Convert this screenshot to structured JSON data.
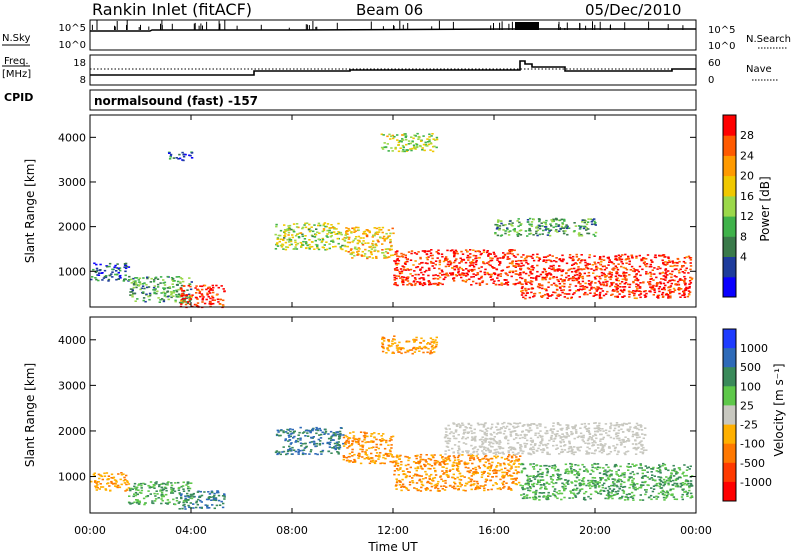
{
  "header": {
    "station": "Rankin Inlet (fitACF)",
    "beam": "Beam 06",
    "date": "05/Dec/2010"
  },
  "noise_panel": {
    "left_label": "N.Sky",
    "right_label": "N.Search",
    "left_ticks": [
      "10^5",
      "10^0"
    ],
    "right_ticks": [
      "10^5",
      "10^0"
    ]
  },
  "freq_panel": {
    "left_label_1": "Freq.",
    "left_label_2": "[MHz]",
    "right_label": "Nave",
    "left_ticks": [
      "18",
      "8"
    ],
    "right_ticks": [
      "60",
      "0"
    ]
  },
  "cpid": {
    "label": "CPID",
    "value": "normalsound (fast) -157"
  },
  "x_axis": {
    "label": "Time UT",
    "ticks": [
      "00:00",
      "04:00",
      "08:00",
      "12:00",
      "16:00",
      "20:00",
      "00:00"
    ]
  },
  "power_colorbar": {
    "label": "Power [dB]",
    "ticks": [
      "28",
      "24",
      "20",
      "16",
      "12",
      "8",
      "4"
    ],
    "colors": [
      "#0a00ff",
      "#1e3c9c",
      "#3a7a4a",
      "#3fb24a",
      "#9bd84a",
      "#f0c800",
      "#ff9a00",
      "#ff5a00",
      "#ff0000"
    ]
  },
  "velocity_colorbar": {
    "label": "Velocity [m s⁻¹]",
    "ticks": [
      "1000",
      "500",
      "100",
      "25",
      "-25",
      "-100",
      "-500",
      "-1000"
    ],
    "colors": [
      "#1e3cff",
      "#2e6ab8",
      "#3a8a5a",
      "#5ec84a",
      "#c8c8c0",
      "#ffb000",
      "#ff7800",
      "#ff3a00",
      "#ff0000"
    ]
  },
  "chart_data": [
    {
      "type": "heatmap",
      "title": "",
      "xlabel": "Time UT",
      "ylabel": "Slant Range [km]",
      "xlim": [
        0,
        24
      ],
      "ylim": [
        200,
        4500
      ],
      "yticks": [
        1000,
        2000,
        3000,
        4000
      ],
      "colorbar_label": "Power [dB]",
      "regions": [
        {
          "t": [
            0.0,
            1.5
          ],
          "r": [
            800,
            1200
          ],
          "value": 8
        },
        {
          "t": [
            1.5,
            4.0
          ],
          "r": [
            300,
            900
          ],
          "value": 12
        },
        {
          "t": [
            3.5,
            5.3
          ],
          "r": [
            200,
            700
          ],
          "value": 28
        },
        {
          "t": [
            7.3,
            10.0
          ],
          "r": [
            1500,
            2100
          ],
          "value": 16
        },
        {
          "t": [
            10.0,
            12.0
          ],
          "r": [
            1300,
            2000
          ],
          "value": 20
        },
        {
          "t": [
            11.5,
            13.7
          ],
          "r": [
            3700,
            4100
          ],
          "value": 16
        },
        {
          "t": [
            12.0,
            17.0
          ],
          "r": [
            700,
            1500
          ],
          "value": 28
        },
        {
          "t": [
            17.0,
            23.8
          ],
          "r": [
            400,
            1400
          ],
          "value": 28
        },
        {
          "t": [
            3.0,
            4.0
          ],
          "r": [
            3500,
            3700
          ],
          "value": 8
        },
        {
          "t": [
            16.0,
            20.0
          ],
          "r": [
            1800,
            2200
          ],
          "value": 12
        }
      ]
    },
    {
      "type": "heatmap",
      "title": "",
      "xlabel": "Time UT",
      "ylabel": "Slant Range [km]",
      "xlim": [
        0,
        24
      ],
      "ylim": [
        200,
        4500
      ],
      "yticks": [
        1000,
        2000,
        3000,
        4000
      ],
      "colorbar_label": "Velocity [m s-1]",
      "regions": [
        {
          "t": [
            0.0,
            1.5
          ],
          "r": [
            700,
            1100
          ],
          "value": -100
        },
        {
          "t": [
            1.5,
            4.0
          ],
          "r": [
            400,
            900
          ],
          "value": 100
        },
        {
          "t": [
            3.5,
            5.3
          ],
          "r": [
            300,
            700
          ],
          "value": 500
        },
        {
          "t": [
            7.3,
            10.0
          ],
          "r": [
            1500,
            2100
          ],
          "value": 500
        },
        {
          "t": [
            10.0,
            12.0
          ],
          "r": [
            1300,
            2000
          ],
          "value": -100
        },
        {
          "t": [
            11.5,
            13.7
          ],
          "r": [
            3700,
            4100
          ],
          "value": -100
        },
        {
          "t": [
            12.0,
            17.0
          ],
          "r": [
            700,
            1500
          ],
          "value": -100
        },
        {
          "t": [
            14.0,
            22.0
          ],
          "r": [
            1500,
            2200
          ],
          "value": 0
        },
        {
          "t": [
            17.0,
            23.8
          ],
          "r": [
            500,
            1300
          ],
          "value": 100
        }
      ]
    }
  ]
}
